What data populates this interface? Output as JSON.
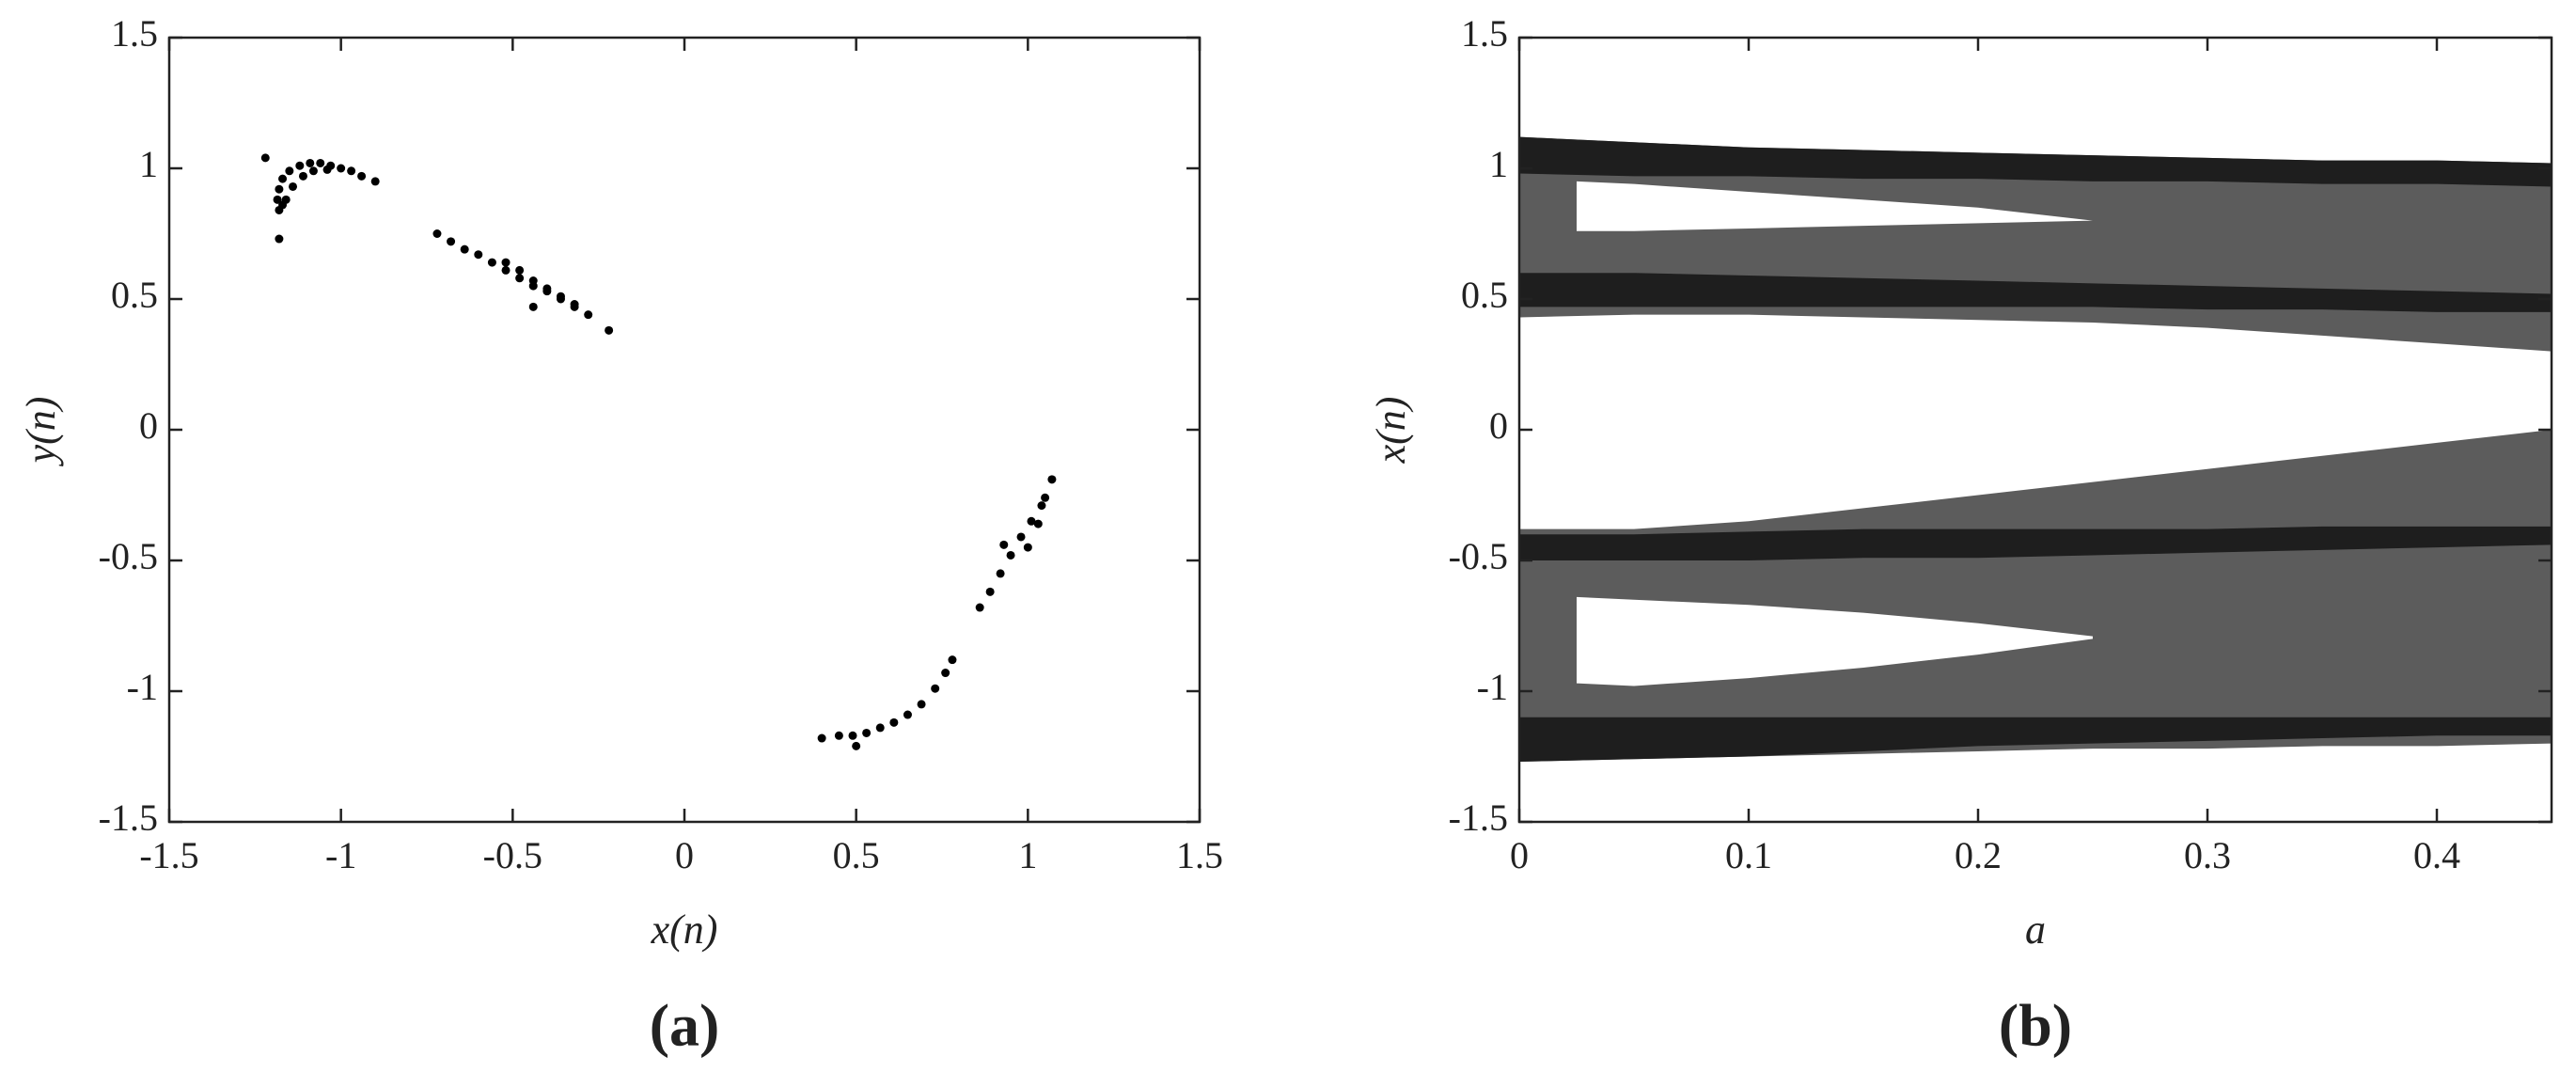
{
  "chart_data": [
    {
      "type": "scatter",
      "panel_label": "(a)",
      "xlabel": "x(n)",
      "ylabel": "y(n)",
      "xlim": [
        -1.5,
        1.5
      ],
      "ylim": [
        -1.5,
        1.5
      ],
      "xticks": [
        -1.5,
        -1,
        -0.5,
        0,
        0.5,
        1,
        1.5
      ],
      "yticks": [
        -1.5,
        -1,
        -0.5,
        0,
        0.5,
        1,
        1.5
      ],
      "color": "#000000",
      "x": [
        -1.22,
        -1.18,
        -1.18,
        -1.185,
        -1.18,
        -1.17,
        -1.15,
        -1.12,
        -1.09,
        -1.06,
        -1.03,
        -1.0,
        -0.97,
        -0.94,
        -0.9,
        -1.17,
        -1.16,
        -1.14,
        -1.11,
        -1.08,
        -1.04,
        -0.72,
        -0.68,
        -0.64,
        -0.6,
        -0.56,
        -0.52,
        -0.48,
        -0.44,
        -0.4,
        -0.36,
        -0.32,
        -0.28,
        -0.52,
        -0.48,
        -0.44,
        -0.4,
        -0.36,
        -0.32,
        -0.44,
        -0.22,
        0.4,
        0.45,
        0.49,
        0.53,
        0.57,
        0.61,
        0.65,
        0.69,
        0.73,
        0.76,
        0.78,
        0.5,
        0.86,
        0.89,
        0.92,
        0.95,
        0.98,
        1.01,
        1.04,
        1.05,
        1.0,
        1.03,
        0.93,
        1.07
      ],
      "y": [
        1.04,
        0.73,
        0.84,
        0.88,
        0.92,
        0.96,
        0.99,
        1.01,
        1.02,
        1.02,
        1.01,
        1.0,
        0.99,
        0.97,
        0.95,
        0.86,
        0.88,
        0.93,
        0.97,
        0.99,
        0.995,
        0.75,
        0.72,
        0.69,
        0.67,
        0.64,
        0.61,
        0.58,
        0.55,
        0.53,
        0.5,
        0.47,
        0.44,
        0.64,
        0.61,
        0.57,
        0.54,
        0.51,
        0.48,
        0.47,
        0.38,
        -1.18,
        -1.17,
        -1.17,
        -1.16,
        -1.14,
        -1.12,
        -1.09,
        -1.05,
        -0.99,
        -0.93,
        -0.88,
        -1.21,
        -0.68,
        -0.62,
        -0.55,
        -0.48,
        -0.41,
        -0.35,
        -0.29,
        -0.26,
        -0.45,
        -0.36,
        -0.44,
        -0.19
      ]
    },
    {
      "type": "band",
      "panel_label": "(b)",
      "xlabel": "a",
      "ylabel": "x(n)",
      "xlim": [
        0,
        0.45
      ],
      "ylim": [
        -1.5,
        1.5
      ],
      "xticks": [
        0,
        0.1,
        0.2,
        0.3,
        0.4
      ],
      "yticks": [
        -1.5,
        -1,
        -0.5,
        0,
        0.5,
        1,
        1.5
      ],
      "regions": [
        {
          "color": "#5c5c5c",
          "x": [
            0,
            0.05,
            0.1,
            0.15,
            0.2,
            0.25,
            0.3,
            0.35,
            0.4,
            0.45
          ],
          "upper": [
            1.12,
            1.1,
            1.08,
            1.07,
            1.06,
            1.05,
            1.04,
            1.03,
            1.03,
            1.02
          ],
          "lower": [
            0.43,
            0.44,
            0.44,
            0.43,
            0.42,
            0.41,
            0.39,
            0.36,
            0.33,
            0.3
          ]
        },
        {
          "color": "#1e1e1e",
          "x": [
            0,
            0.05,
            0.1,
            0.15,
            0.2,
            0.25,
            0.3,
            0.35,
            0.4,
            0.45
          ],
          "upper": [
            1.12,
            1.1,
            1.08,
            1.07,
            1.06,
            1.05,
            1.04,
            1.03,
            1.03,
            1.02
          ],
          "lower": [
            0.98,
            0.97,
            0.97,
            0.96,
            0.96,
            0.95,
            0.95,
            0.94,
            0.94,
            0.93
          ]
        },
        {
          "color": "#1e1e1e",
          "x": [
            0,
            0.05,
            0.1,
            0.15,
            0.2,
            0.25,
            0.3,
            0.35,
            0.4,
            0.45
          ],
          "upper": [
            0.6,
            0.6,
            0.59,
            0.58,
            0.57,
            0.56,
            0.55,
            0.54,
            0.53,
            0.52
          ],
          "lower": [
            0.47,
            0.47,
            0.47,
            0.47,
            0.47,
            0.47,
            0.46,
            0.46,
            0.45,
            0.45
          ]
        },
        {
          "color": "#ffffff",
          "x": [
            0.025,
            0.05,
            0.1,
            0.15,
            0.2,
            0.25
          ],
          "upper": [
            0.95,
            0.94,
            0.91,
            0.88,
            0.85,
            0.8
          ],
          "lower": [
            0.76,
            0.76,
            0.77,
            0.78,
            0.79,
            0.8
          ]
        },
        {
          "color": "#5c5c5c",
          "x": [
            0,
            0.05,
            0.1,
            0.15,
            0.2,
            0.25,
            0.3,
            0.35,
            0.4,
            0.45
          ],
          "upper": [
            -0.38,
            -0.38,
            -0.35,
            -0.3,
            -0.25,
            -0.2,
            -0.15,
            -0.1,
            -0.05,
            0
          ],
          "lower": [
            -1.27,
            -1.26,
            -1.25,
            -1.24,
            -1.23,
            -1.22,
            -1.22,
            -1.21,
            -1.21,
            -1.2
          ]
        },
        {
          "color": "#1e1e1e",
          "x": [
            0,
            0.05,
            0.1,
            0.15,
            0.2,
            0.25,
            0.3,
            0.35,
            0.4,
            0.45
          ],
          "upper": [
            -0.4,
            -0.4,
            -0.39,
            -0.38,
            -0.38,
            -0.38,
            -0.38,
            -0.37,
            -0.37,
            -0.37
          ],
          "lower": [
            -0.5,
            -0.5,
            -0.5,
            -0.49,
            -0.49,
            -0.48,
            -0.47,
            -0.46,
            -0.45,
            -0.44
          ]
        },
        {
          "color": "#1e1e1e",
          "x": [
            0,
            0.05,
            0.1,
            0.15,
            0.2,
            0.25,
            0.3,
            0.35,
            0.4,
            0.45
          ],
          "upper": [
            -1.1,
            -1.1,
            -1.1,
            -1.1,
            -1.1,
            -1.1,
            -1.1,
            -1.1,
            -1.1,
            -1.1
          ],
          "lower": [
            -1.27,
            -1.26,
            -1.25,
            -1.23,
            -1.21,
            -1.2,
            -1.19,
            -1.18,
            -1.17,
            -1.17
          ]
        },
        {
          "color": "#ffffff",
          "x": [
            0.025,
            0.05,
            0.1,
            0.15,
            0.2,
            0.25
          ],
          "upper": [
            -0.64,
            -0.65,
            -0.67,
            -0.7,
            -0.74,
            -0.79
          ],
          "lower": [
            -0.97,
            -0.98,
            -0.95,
            -0.91,
            -0.86,
            -0.8
          ]
        }
      ]
    }
  ]
}
